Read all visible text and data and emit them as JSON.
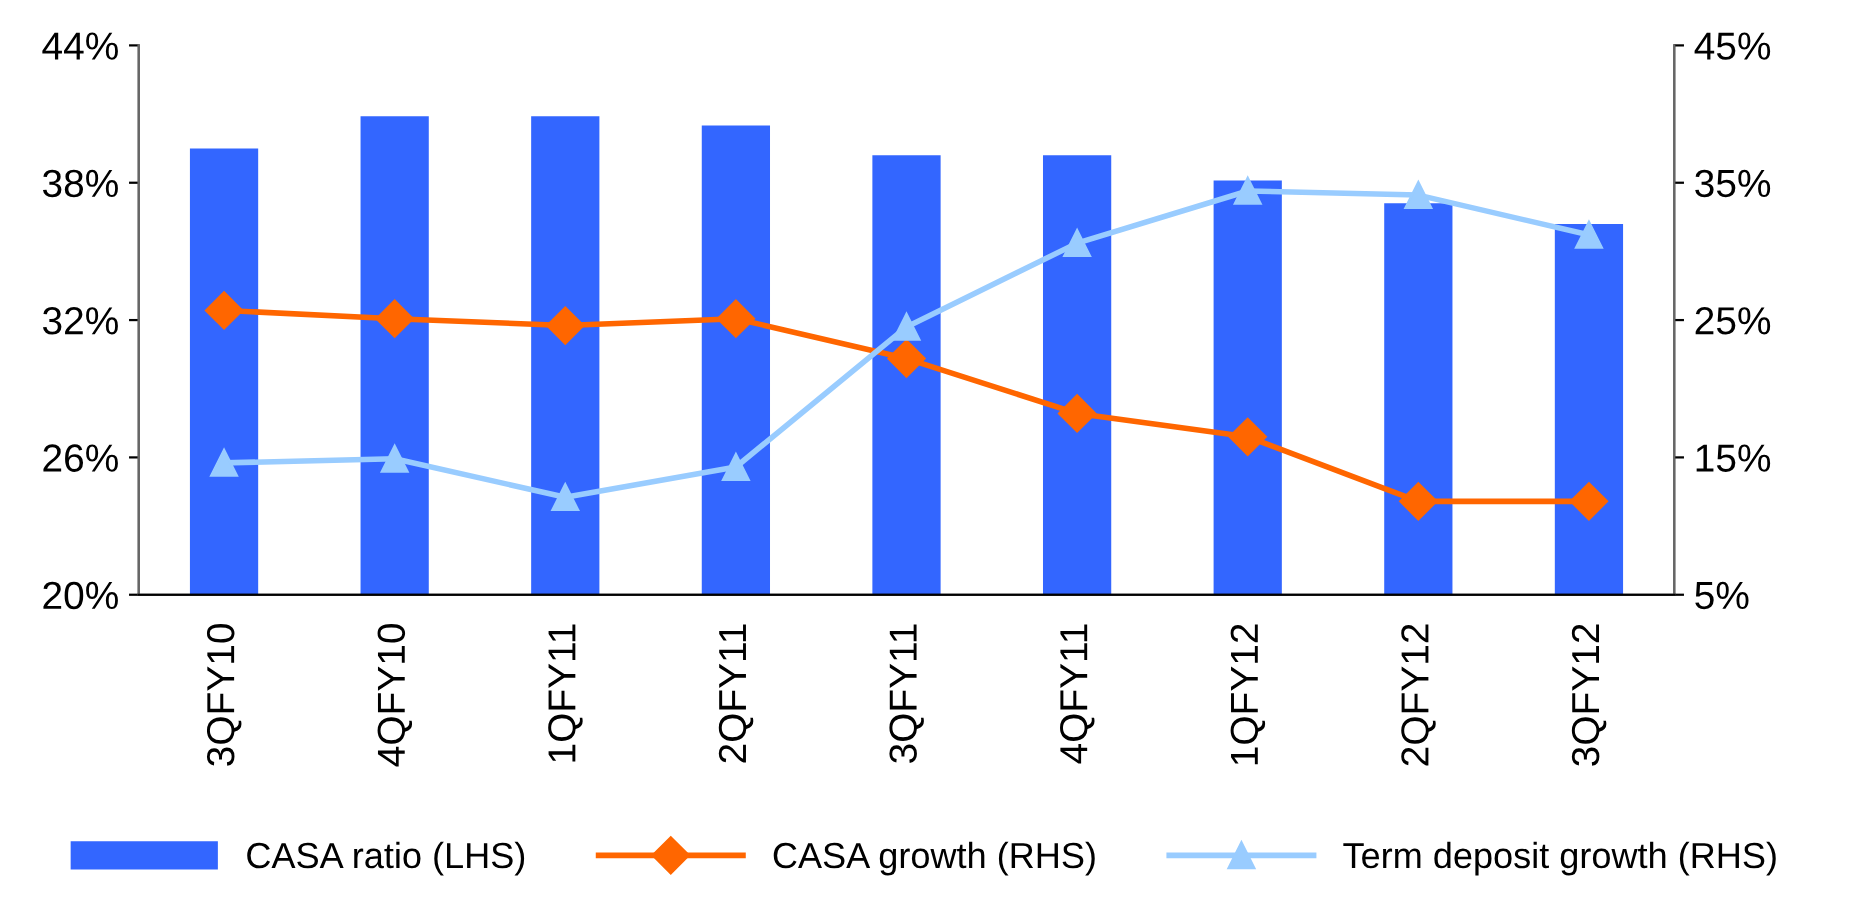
{
  "chart_data": {
    "type": "bar",
    "categories": [
      "3QFY10",
      "4QFY10",
      "1QFY11",
      "2QFY11",
      "3QFY11",
      "4QFY11",
      "1QFY12",
      "2QFY12",
      "3QFY12"
    ],
    "series": [
      {
        "name": "CASA ratio (LHS)",
        "color": "#3366ff",
        "values": [
          39.5,
          40.9,
          40.9,
          40.5,
          39.2,
          39.2,
          38.1,
          37.1,
          36.2
        ]
      },
      {
        "name": "CASA growth (RHS)",
        "type": "line",
        "axis": "y2",
        "color": "#ff6600",
        "marker": "diamond",
        "values": [
          25.7,
          25.1,
          24.6,
          25.1,
          22.2,
          18.2,
          16.5,
          11.8,
          11.8
        ]
      },
      {
        "name": "Term deposit growth (RHS)",
        "type": "line",
        "axis": "y2",
        "color": "#99ccff",
        "marker": "triangle",
        "values": [
          14.6,
          14.9,
          12.1,
          14.3,
          24.5,
          30.6,
          34.4,
          34.1,
          31.2
        ]
      }
    ],
    "ylim": [
      20,
      44
    ],
    "yticks": [
      {
        "value": 20,
        "label": "20%"
      },
      {
        "value": 26,
        "label": "26%"
      },
      {
        "value": 32,
        "label": "32%"
      },
      {
        "value": 38,
        "label": "38%"
      },
      {
        "value": 44,
        "label": "44%"
      }
    ],
    "y2lim": [
      5,
      45
    ],
    "y2ticks": [
      {
        "value": 5,
        "label": "5%"
      },
      {
        "value": 15,
        "label": "15%"
      },
      {
        "value": 25,
        "label": "25%"
      },
      {
        "value": 35,
        "label": "35%"
      },
      {
        "value": 45,
        "label": "45%"
      }
    ],
    "legend": "bottom",
    "grid": false
  }
}
